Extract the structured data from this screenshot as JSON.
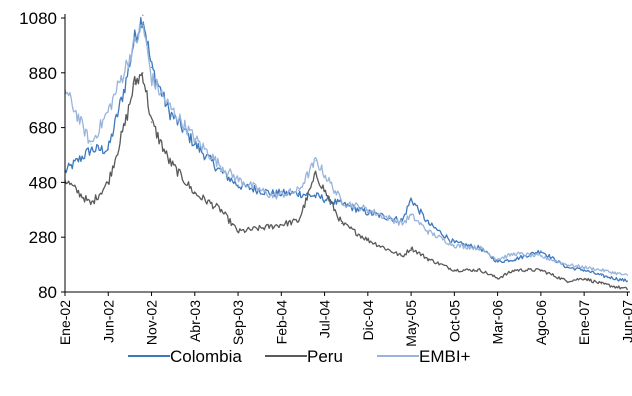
{
  "chart_data": {
    "type": "line",
    "title": "",
    "xlabel": "",
    "ylabel": "",
    "ylim": [
      80,
      1080
    ],
    "yticks": [
      80,
      280,
      480,
      680,
      880,
      1080
    ],
    "grid": false,
    "legend_position": "bottom",
    "x_tick_labels": [
      "Ene-02",
      "Jun-02",
      "Nov-02",
      "Abr-03",
      "Sep-03",
      "Feb-04",
      "Jul-04",
      "Dic-04",
      "May-05",
      "Oct-05",
      "Mar-06",
      "Ago-06",
      "Ene-07",
      "Jun-07"
    ],
    "x": [
      "2002-01",
      "2002-04",
      "2002-06",
      "2002-08",
      "2002-09",
      "2002-10",
      "2002-11",
      "2003-01",
      "2003-04",
      "2003-07",
      "2003-09",
      "2004-01",
      "2004-04",
      "2004-06",
      "2004-09",
      "2004-12",
      "2005-04",
      "2005-05",
      "2005-07",
      "2005-10",
      "2006-01",
      "2006-03",
      "2006-05",
      "2006-08",
      "2006-11",
      "2007-01",
      "2007-03",
      "2007-06"
    ],
    "series": [
      {
        "name": "Colombia",
        "color": "#3d78bd",
        "values": [
          520,
          600,
          600,
          840,
          1000,
          1090,
          900,
          740,
          620,
          520,
          470,
          440,
          440,
          430,
          400,
          370,
          340,
          420,
          330,
          260,
          240,
          190,
          200,
          230,
          170,
          160,
          140,
          120
        ]
      },
      {
        "name": "Peru",
        "color": "#595959",
        "values": [
          490,
          400,
          480,
          700,
          840,
          880,
          700,
          560,
          440,
          380,
          300,
          320,
          340,
          510,
          330,
          270,
          210,
          240,
          200,
          160,
          160,
          130,
          160,
          160,
          120,
          130,
          110,
          90
        ]
      },
      {
        "name": "EMBI+",
        "color": "#98b4dc",
        "values": [
          820,
          620,
          740,
          900,
          980,
          1060,
          860,
          760,
          640,
          540,
          490,
          430,
          450,
          560,
          410,
          380,
          330,
          360,
          300,
          250,
          240,
          200,
          220,
          210,
          180,
          170,
          160,
          140
        ]
      }
    ]
  }
}
